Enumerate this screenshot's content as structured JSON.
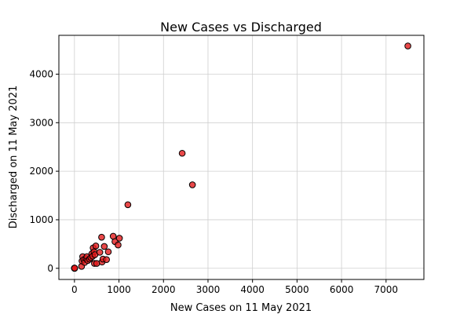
{
  "chart_data": {
    "type": "scatter",
    "title": "New Cases vs Discharged",
    "xlabel": "New Cases on 11 May 2021",
    "ylabel": "Discharged on 11 May 2021",
    "xlim": [
      -350,
      7850
    ],
    "ylim": [
      -230,
      4800
    ],
    "xticks": [
      0,
      1000,
      2000,
      3000,
      4000,
      5000,
      6000,
      7000
    ],
    "yticks": [
      0,
      1000,
      2000,
      3000,
      4000
    ],
    "grid": true,
    "marker_color": "#e41a1c",
    "marker_edge_color": "#000000",
    "points": [
      {
        "x": 0,
        "y": 0
      },
      {
        "x": 0,
        "y": 5
      },
      {
        "x": 5,
        "y": 0
      },
      {
        "x": 3,
        "y": 3
      },
      {
        "x": 160,
        "y": 40
      },
      {
        "x": 170,
        "y": 150
      },
      {
        "x": 185,
        "y": 240
      },
      {
        "x": 210,
        "y": 180
      },
      {
        "x": 230,
        "y": 120
      },
      {
        "x": 260,
        "y": 200
      },
      {
        "x": 280,
        "y": 240
      },
      {
        "x": 300,
        "y": 160
      },
      {
        "x": 340,
        "y": 190
      },
      {
        "x": 370,
        "y": 220
      },
      {
        "x": 390,
        "y": 300
      },
      {
        "x": 410,
        "y": 250
      },
      {
        "x": 420,
        "y": 420
      },
      {
        "x": 440,
        "y": 340
      },
      {
        "x": 450,
        "y": 100
      },
      {
        "x": 460,
        "y": 280
      },
      {
        "x": 480,
        "y": 460
      },
      {
        "x": 500,
        "y": 100
      },
      {
        "x": 570,
        "y": 330
      },
      {
        "x": 610,
        "y": 640
      },
      {
        "x": 620,
        "y": 130
      },
      {
        "x": 640,
        "y": 190
      },
      {
        "x": 670,
        "y": 450
      },
      {
        "x": 720,
        "y": 180
      },
      {
        "x": 760,
        "y": 340
      },
      {
        "x": 870,
        "y": 660
      },
      {
        "x": 910,
        "y": 550
      },
      {
        "x": 980,
        "y": 480
      },
      {
        "x": 1010,
        "y": 620
      },
      {
        "x": 1200,
        "y": 1310
      },
      {
        "x": 2420,
        "y": 2370
      },
      {
        "x": 2650,
        "y": 1720
      },
      {
        "x": 7490,
        "y": 4580
      }
    ]
  }
}
